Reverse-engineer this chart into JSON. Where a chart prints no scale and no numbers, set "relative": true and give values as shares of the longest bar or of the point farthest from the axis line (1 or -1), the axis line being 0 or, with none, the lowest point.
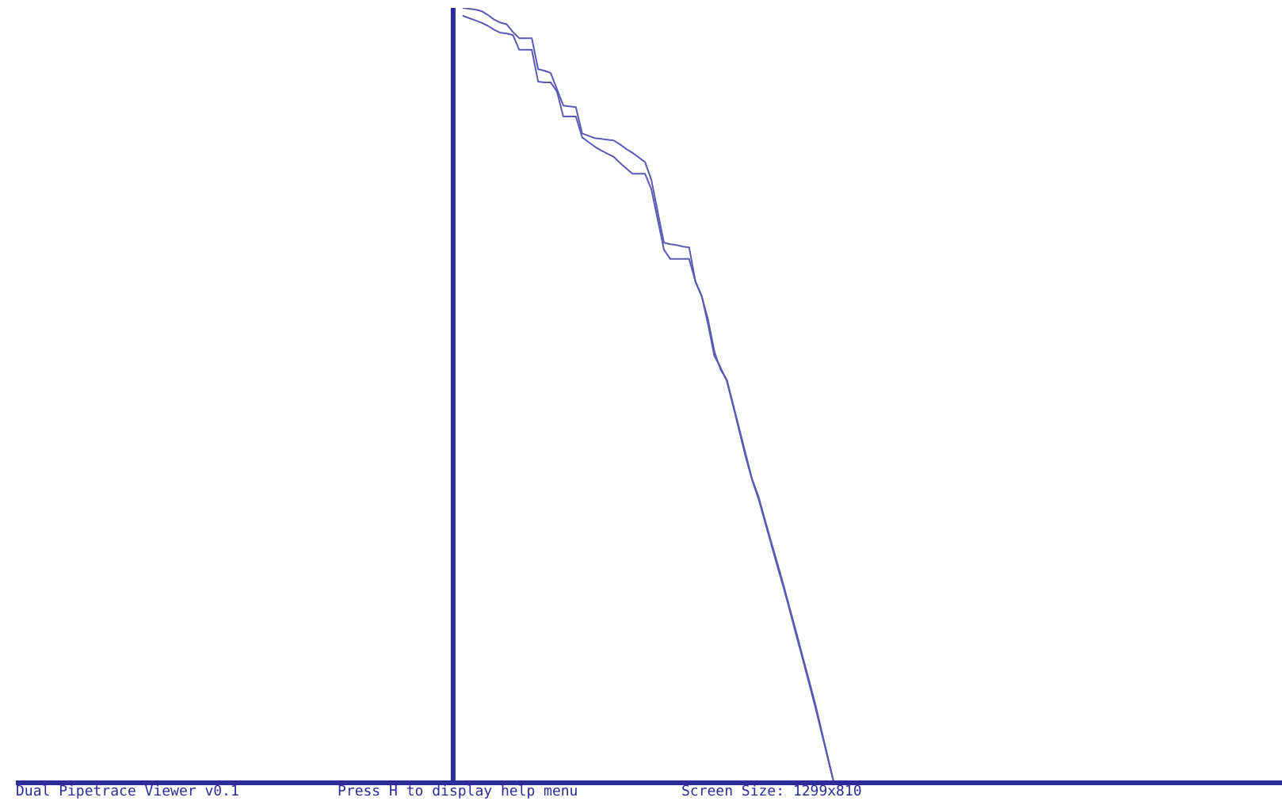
{
  "chart_data": {
    "type": "line",
    "relative": true,
    "legend": false,
    "marker": "none",
    "line_style": "solid",
    "annotations": [
      "Dual Pipetrace Viewer v0.1",
      "Press H to display help menu",
      "Screen Size: 1299x810"
    ],
    "categories": [
      null,
      null,
      null,
      null,
      null,
      null,
      null,
      null,
      null,
      null,
      null,
      null,
      null,
      null,
      null,
      null,
      null,
      null,
      null,
      null,
      null,
      null,
      null,
      null,
      null,
      null,
      null,
      null,
      null,
      null,
      null,
      null,
      null,
      null,
      null,
      null,
      null,
      null,
      null,
      null,
      null,
      null,
      null,
      null,
      null,
      null,
      null,
      null,
      null,
      null,
      null,
      null,
      null,
      null,
      null,
      null,
      null,
      null,
      null,
      null
    ],
    "series": [
      {
        "color": "#5a5ab4",
        "values": [
          1.0,
          0.999,
          0.998,
          0.996,
          0.991,
          0.985,
          0.981,
          0.979,
          0.969,
          0.961,
          0.961,
          0.961,
          0.921,
          0.919,
          0.916,
          0.895,
          0.874,
          0.873,
          0.872,
          0.838,
          0.835,
          0.832,
          0.831,
          0.83,
          0.829,
          0.824,
          0.818,
          0.813,
          0.807,
          0.801,
          0.778,
          0.737,
          0.697,
          0.695,
          0.694,
          0.692,
          0.691,
          0.647,
          0.628,
          0.592,
          0.551,
          0.536,
          0.518,
          0.486,
          0.453,
          0.42,
          0.391,
          0.367,
          0.338,
          0.309,
          0.28,
          0.252,
          0.222,
          0.191,
          0.161,
          0.13,
          0.099,
          0.066,
          0.033,
          0
        ]
      },
      {
        "color": "#5a5ab4",
        "values": [
          0.99,
          0.987,
          0.984,
          0.981,
          0.977,
          0.972,
          0.968,
          0.967,
          0.965,
          0.946,
          0.946,
          0.946,
          0.905,
          0.904,
          0.904,
          0.892,
          0.86,
          0.86,
          0.86,
          0.833,
          0.827,
          0.821,
          0.816,
          0.812,
          0.808,
          0.8,
          0.793,
          0.786,
          0.786,
          0.786,
          0.766,
          0.727,
          0.688,
          0.676,
          0.676,
          0.676,
          0.676,
          0.647,
          0.628,
          0.598,
          0.557,
          0.533,
          0.52,
          0.488,
          0.456,
          0.424,
          0.392,
          0.37,
          0.341,
          0.312,
          0.284,
          0.255,
          0.225,
          0.195,
          0.164,
          0.134,
          0.103,
          0.069,
          0.034,
          0
        ]
      }
    ]
  }
}
